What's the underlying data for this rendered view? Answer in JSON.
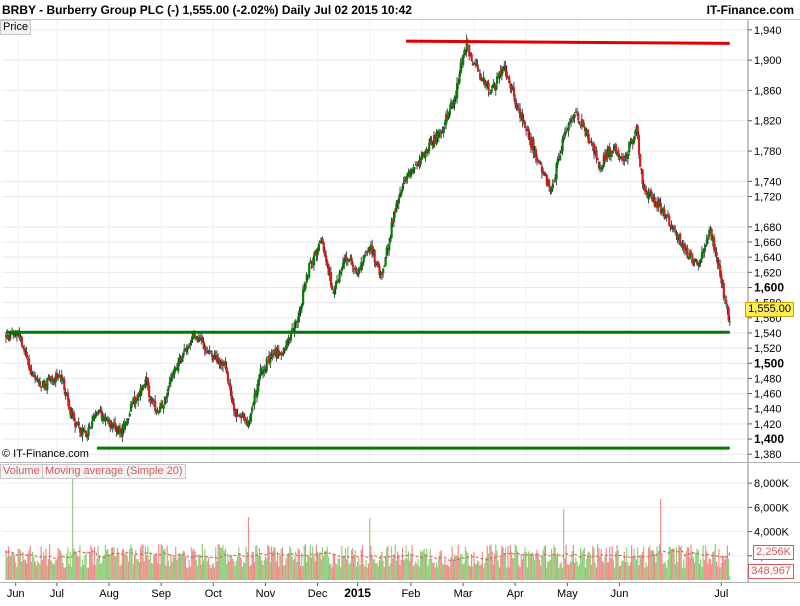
{
  "header": {
    "title": "BRBY - Burberry Group PLC (-)     1,555.00 (-2.02%)     Daily  Jul 02 2015 10:42",
    "brand": "IT-Finance.com"
  },
  "price_panel": {
    "tag": "Price",
    "copyright": "© IT-Finance.com",
    "current_price_label": "1,555.00"
  },
  "volume_panel": {
    "volume_tag": "Volume",
    "ma_tag": "Moving average (Simple 20)",
    "ma_badge": "2,256K",
    "last_volume_badge": "348,967"
  },
  "colors": {
    "candle_up": "#008000",
    "candle_down": "#d02020",
    "support_line": "#007a00",
    "resistance_line": "#e00000",
    "volume_up": "#8fcf7a",
    "volume_down": "#f08a8a",
    "volume_ma": "#d45a5a",
    "badge_current": "#ffee55"
  },
  "chart_data": [
    {
      "type": "candlestick",
      "title": "BRBY - Burberry Group PLC (-)",
      "period": "Daily",
      "x_labels": [
        "Jun",
        "Jul",
        "Aug",
        "Sep",
        "Oct",
        "Nov",
        "Dec",
        "2015",
        "Feb",
        "Mar",
        "Apr",
        "May",
        "Jun",
        "Jul"
      ],
      "y_ticks": [
        1380,
        1400,
        1420,
        1440,
        1460,
        1480,
        1500,
        1520,
        1540,
        1560,
        1580,
        1600,
        1620,
        1640,
        1660,
        1680,
        1720,
        1740,
        1780,
        1820,
        1860,
        1900,
        1940
      ],
      "y_bold_ticks": [
        1400,
        1500,
        1600
      ],
      "ylim": [
        1375,
        1945
      ],
      "last_price": 1555.0,
      "anchor_closes": [
        [
          0,
          1535
        ],
        [
          10,
          1545
        ],
        [
          20,
          1490
        ],
        [
          30,
          1470
        ],
        [
          45,
          1485
        ],
        [
          55,
          1425
        ],
        [
          65,
          1405
        ],
        [
          75,
          1438
        ],
        [
          85,
          1420
        ],
        [
          95,
          1408
        ],
        [
          105,
          1450
        ],
        [
          115,
          1475
        ],
        [
          125,
          1430
        ],
        [
          135,
          1470
        ],
        [
          145,
          1512
        ],
        [
          155,
          1538
        ],
        [
          165,
          1520
        ],
        [
          180,
          1498
        ],
        [
          190,
          1430
        ],
        [
          200,
          1418
        ],
        [
          210,
          1490
        ],
        [
          220,
          1510
        ],
        [
          230,
          1518
        ],
        [
          240,
          1555
        ],
        [
          250,
          1628
        ],
        [
          260,
          1660
        ],
        [
          270,
          1595
        ],
        [
          280,
          1640
        ],
        [
          290,
          1620
        ],
        [
          300,
          1655
        ],
        [
          310,
          1610
        ],
        [
          320,
          1700
        ],
        [
          330,
          1745
        ],
        [
          340,
          1765
        ],
        [
          350,
          1790
        ],
        [
          360,
          1810
        ],
        [
          370,
          1850
        ],
        [
          375,
          1890
        ],
        [
          380,
          1920
        ],
        [
          390,
          1880
        ],
        [
          400,
          1860
        ],
        [
          410,
          1890
        ],
        [
          420,
          1845
        ],
        [
          430,
          1805
        ],
        [
          440,
          1760
        ],
        [
          450,
          1730
        ],
        [
          460,
          1800
        ],
        [
          470,
          1830
        ],
        [
          480,
          1800
        ],
        [
          490,
          1760
        ],
        [
          500,
          1785
        ],
        [
          510,
          1770
        ],
        [
          520,
          1810
        ],
        [
          525,
          1735
        ],
        [
          530,
          1720
        ],
        [
          540,
          1705
        ],
        [
          550,
          1680
        ],
        [
          560,
          1650
        ],
        [
          570,
          1630
        ],
        [
          580,
          1675
        ],
        [
          585,
          1650
        ],
        [
          590,
          1605
        ],
        [
          597,
          1555
        ]
      ],
      "lines": [
        {
          "name": "resistance",
          "from": [
            330,
            1925
          ],
          "to": [
            597,
            1922
          ]
        },
        {
          "name": "support",
          "from": [
            0,
            1541
          ],
          "to": [
            597,
            1541
          ]
        },
        {
          "name": "lower-support",
          "from": [
            75,
            1388
          ],
          "to": [
            597,
            1388
          ]
        }
      ]
    },
    {
      "type": "bar",
      "name": "Volume",
      "y_ticks": [
        "2,000K",
        "4,000K",
        "6,000K",
        "8,000K"
      ],
      "y_tick_values": [
        2000000,
        4000000,
        6000000,
        8000000
      ],
      "ylim": [
        0,
        9000000
      ],
      "ma_window": 20,
      "ma_last": 2256000,
      "last_volume": 348967,
      "typical_volume": 2200000,
      "spikes": [
        [
          55,
          9500000
        ],
        [
          200,
          5200000
        ],
        [
          300,
          5100000
        ],
        [
          460,
          5900000
        ],
        [
          540,
          6700000
        ],
        [
          570,
          2600000
        ]
      ]
    }
  ]
}
